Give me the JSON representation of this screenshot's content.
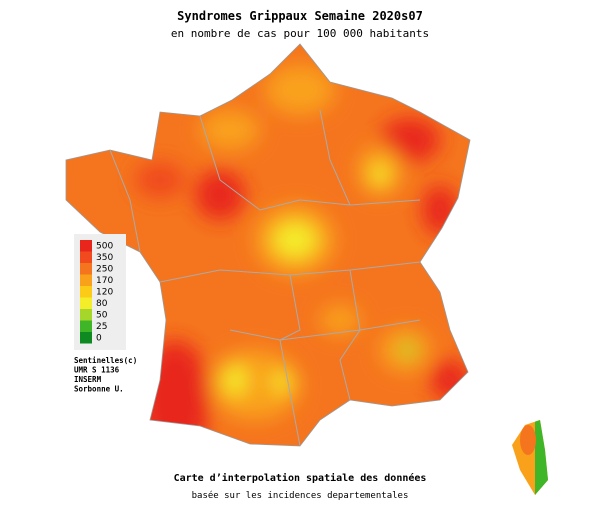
{
  "title": "Syndromes Grippaux Semaine 2020s07",
  "subtitle": "en nombre de cas pour 100 000 habitants",
  "legend": [
    {
      "value": 500,
      "color": "#e8261c"
    },
    {
      "value": 350,
      "color": "#f04a1e"
    },
    {
      "value": 250,
      "color": "#f5751e"
    },
    {
      "value": 170,
      "color": "#f9a11a"
    },
    {
      "value": 120,
      "color": "#fbcb18"
    },
    {
      "value": 80,
      "color": "#f4ee2a"
    },
    {
      "value": 50,
      "color": "#a6d62a"
    },
    {
      "value": 25,
      "color": "#3fb628"
    },
    {
      "value": 0,
      "color": "#0f8a20"
    }
  ],
  "credits": [
    "Sentinelles(c)",
    "UMR S 1136",
    "INSERM",
    "Sorbonne U."
  ],
  "footer": {
    "title": "Carte d’interpolation spatiale des données",
    "subtitle": "basée sur les incidences departementales"
  }
}
